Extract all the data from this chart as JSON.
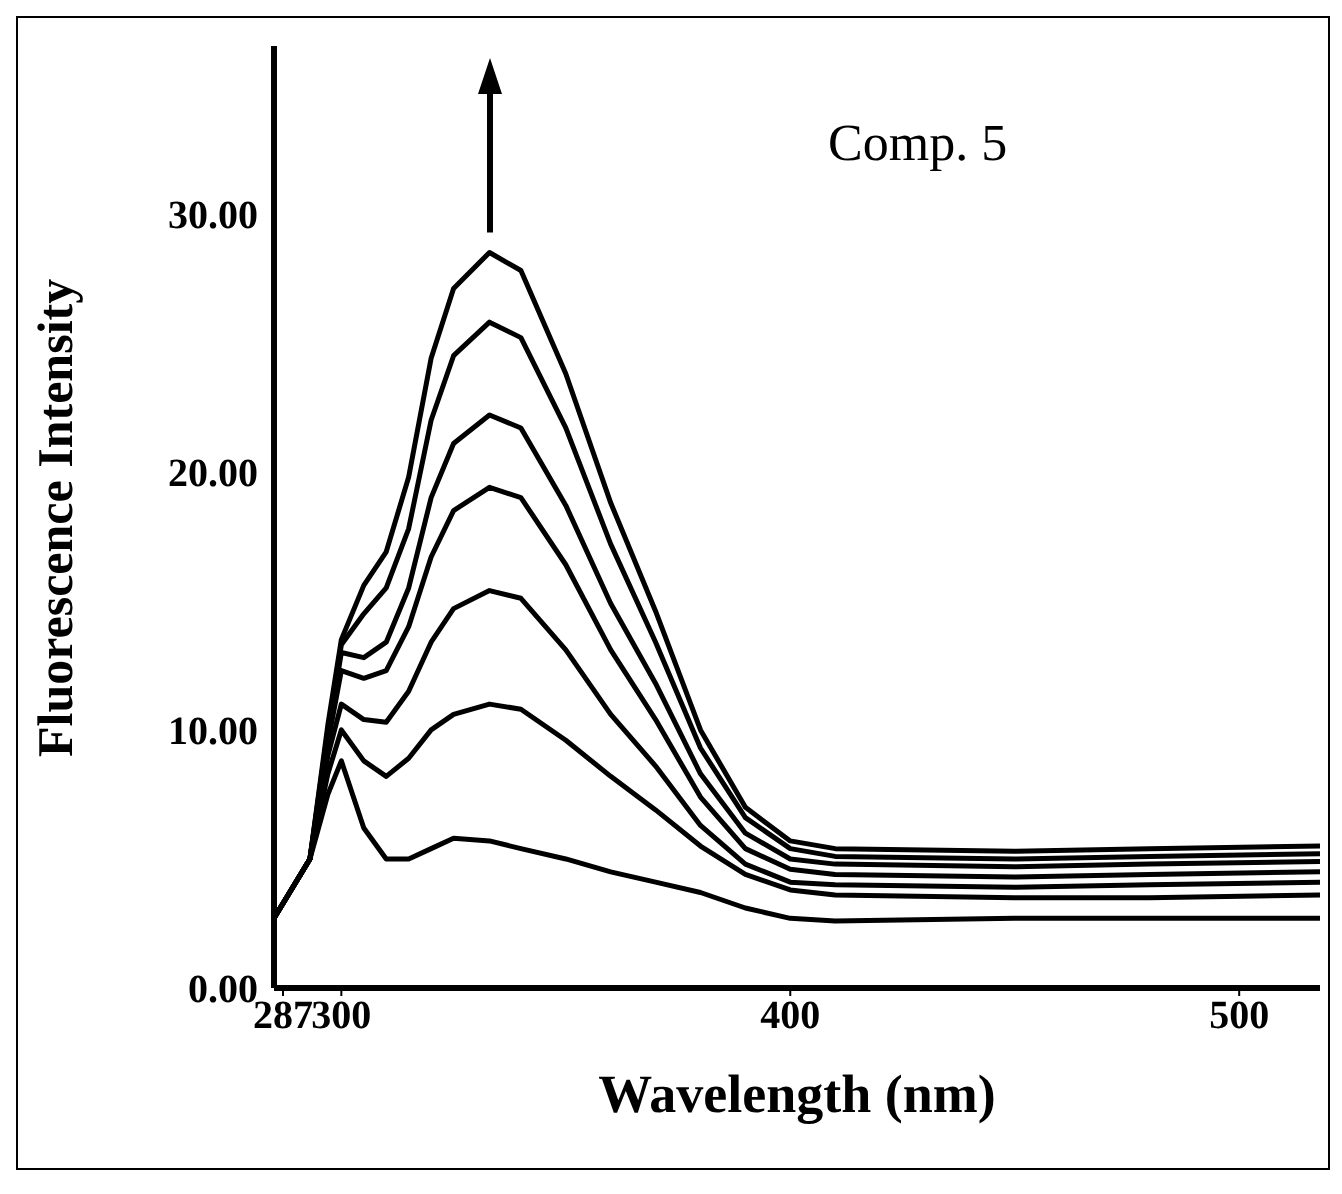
{
  "chart_data": {
    "type": "line",
    "xlabel": "Wavelength (nm)",
    "ylabel": "Fluorescence Intensity",
    "annotations": [
      "Comp. 5"
    ],
    "x": [
      285,
      293,
      297,
      300,
      305,
      310,
      315,
      320,
      325,
      333,
      340,
      350,
      360,
      370,
      380,
      390,
      400,
      410,
      450,
      480,
      518
    ],
    "series": [
      {
        "color": "#000000",
        "values": [
          2.7,
          5.0,
          7.5,
          8.8,
          6.2,
          5.0,
          5.0,
          5.4,
          5.8,
          5.7,
          5.4,
          5.0,
          4.5,
          4.1,
          3.7,
          3.1,
          2.7,
          2.6,
          2.7,
          2.7,
          2.7
        ]
      },
      {
        "color": "#000000",
        "values": [
          2.7,
          5.0,
          8.3,
          10.0,
          8.8,
          8.2,
          8.9,
          10.0,
          10.6,
          11.0,
          10.8,
          9.6,
          8.2,
          6.9,
          5.5,
          4.4,
          3.8,
          3.6,
          3.5,
          3.5,
          3.6
        ]
      },
      {
        "color": "#000000",
        "values": [
          2.7,
          5.0,
          9.0,
          11.0,
          10.4,
          10.3,
          11.5,
          13.4,
          14.7,
          15.4,
          15.1,
          13.1,
          10.6,
          8.6,
          6.3,
          4.8,
          4.1,
          4.0,
          3.9,
          4.0,
          4.1
        ]
      },
      {
        "color": "#000000",
        "values": [
          2.7,
          5.0,
          9.5,
          12.3,
          12.0,
          12.3,
          14.0,
          16.7,
          18.5,
          19.4,
          19.0,
          16.4,
          13.1,
          10.4,
          7.4,
          5.4,
          4.6,
          4.4,
          4.3,
          4.4,
          4.5
        ]
      },
      {
        "color": "#000000",
        "values": [
          2.7,
          5.0,
          9.8,
          13.0,
          12.8,
          13.4,
          15.5,
          19.0,
          21.1,
          22.2,
          21.7,
          18.7,
          14.9,
          11.8,
          8.3,
          6.0,
          5.0,
          4.8,
          4.7,
          4.8,
          4.9
        ]
      },
      {
        "color": "#000000",
        "values": [
          2.7,
          5.0,
          10.0,
          13.3,
          14.5,
          15.5,
          17.8,
          22.0,
          24.5,
          25.8,
          25.2,
          21.7,
          17.2,
          13.4,
          9.3,
          6.6,
          5.4,
          5.1,
          5.0,
          5.1,
          5.2
        ]
      },
      {
        "color": "#000000",
        "values": [
          2.7,
          5.0,
          10.2,
          13.5,
          15.6,
          16.9,
          19.8,
          24.4,
          27.1,
          28.5,
          27.8,
          23.8,
          18.8,
          14.6,
          10.0,
          7.0,
          5.7,
          5.4,
          5.3,
          5.4,
          5.5
        ]
      }
    ],
    "xlim": [
      285,
      518
    ],
    "xticks": [
      287,
      300,
      400,
      500
    ],
    "ylim": [
      0,
      36.5
    ],
    "yticks": [
      {
        "value": 0,
        "label": "0.00"
      },
      {
        "value": 10,
        "label": "10.00"
      },
      {
        "value": 20,
        "label": "20.00"
      },
      {
        "value": 30,
        "label": "30.00"
      }
    ],
    "grid": false,
    "legend": false,
    "marker": "none",
    "line_style": "solid"
  }
}
